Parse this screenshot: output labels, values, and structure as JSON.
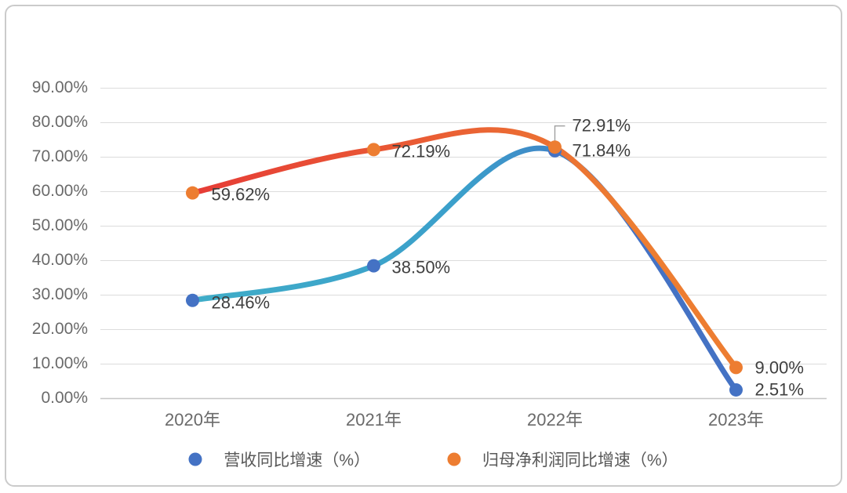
{
  "chart_data": {
    "type": "line",
    "smooth": true,
    "title": "",
    "xlabel": "",
    "ylabel": "",
    "categories": [
      "2020年",
      "2021年",
      "2022年",
      "2023年"
    ],
    "y_ticks": [
      "0.00%",
      "10.00%",
      "20.00%",
      "30.00%",
      "40.00%",
      "50.00%",
      "60.00%",
      "70.00%",
      "80.00%",
      "90.00%"
    ],
    "ylim": [
      0,
      90
    ],
    "grid": true,
    "legend_position": "bottom",
    "series": [
      {
        "name": "营收同比增速（%）",
        "values": [
          28.46,
          38.5,
          71.84,
          2.51
        ],
        "point_labels": [
          "28.46%",
          "38.50%",
          "71.84%",
          "2.51%"
        ],
        "color_start": "#3FADC8",
        "color_mid": "#3B9FCB",
        "color_end": "#4472C4",
        "marker_color": "#4472C4",
        "label_offsets": [
          [
            24,
            4
          ],
          [
            23,
            3
          ],
          [
            22,
            1
          ],
          [
            24,
            1
          ]
        ],
        "leader_index": -1
      },
      {
        "name": "归母净利润同比增速（%）",
        "values": [
          59.62,
          72.19,
          72.91,
          9.0
        ],
        "point_labels": [
          "59.62%",
          "72.19%",
          "72.91%",
          "9.00%"
        ],
        "color_start": "#E63C36",
        "color_mid": "#EA6234",
        "color_end": "#ED7D31",
        "marker_color": "#ED7D31",
        "label_offsets": [
          [
            24,
            3
          ],
          [
            23,
            3
          ],
          [
            22,
            -27
          ],
          [
            24,
            1
          ]
        ],
        "leader_index": 2
      }
    ]
  },
  "colors": {
    "grid": "#dcdcdc",
    "axis": "#c6c6c6",
    "tick_text": "#6a6a6a",
    "data_label_text": "#3f3f3f",
    "legend_text": "#595959",
    "card_border": "#cbcbcb",
    "leader": "#a0a0a0"
  }
}
